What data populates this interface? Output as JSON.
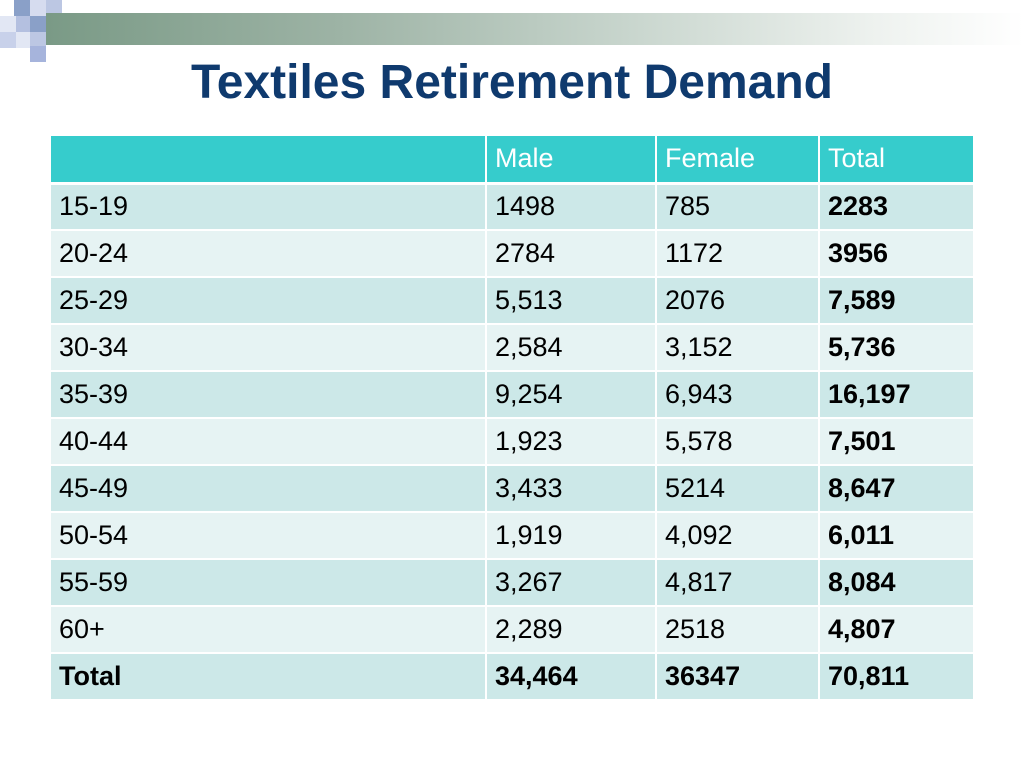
{
  "slide": {
    "title": "Textiles Retirement Demand",
    "colors": {
      "title": "#0f3a6e",
      "header_bg": "#36cccc",
      "row_dark": "#cce8e8",
      "row_light": "#e6f3f3"
    }
  },
  "table": {
    "headers": [
      "",
      "Male",
      "Female",
      "Total"
    ],
    "rows": [
      [
        "15-19",
        "1498",
        "785",
        "2283"
      ],
      [
        "20-24",
        "2784",
        "1172",
        "3956"
      ],
      [
        "25-29",
        "5,513",
        "2076",
        "7,589"
      ],
      [
        "30-34",
        "2,584",
        "3,152",
        "5,736"
      ],
      [
        "35-39",
        "9,254",
        "6,943",
        "16,197"
      ],
      [
        "40-44",
        "1,923",
        "5,578",
        "7,501"
      ],
      [
        "45-49",
        "3,433",
        "5214",
        "8,647"
      ],
      [
        "50-54",
        "1,919",
        "4,092",
        "6,011"
      ],
      [
        "55-59",
        "3,267",
        "4,817",
        "8,084"
      ],
      [
        "60+",
        "2,289",
        "2518",
        "4,807"
      ],
      [
        "Total",
        "34,464",
        "36347",
        "70,811"
      ]
    ]
  }
}
